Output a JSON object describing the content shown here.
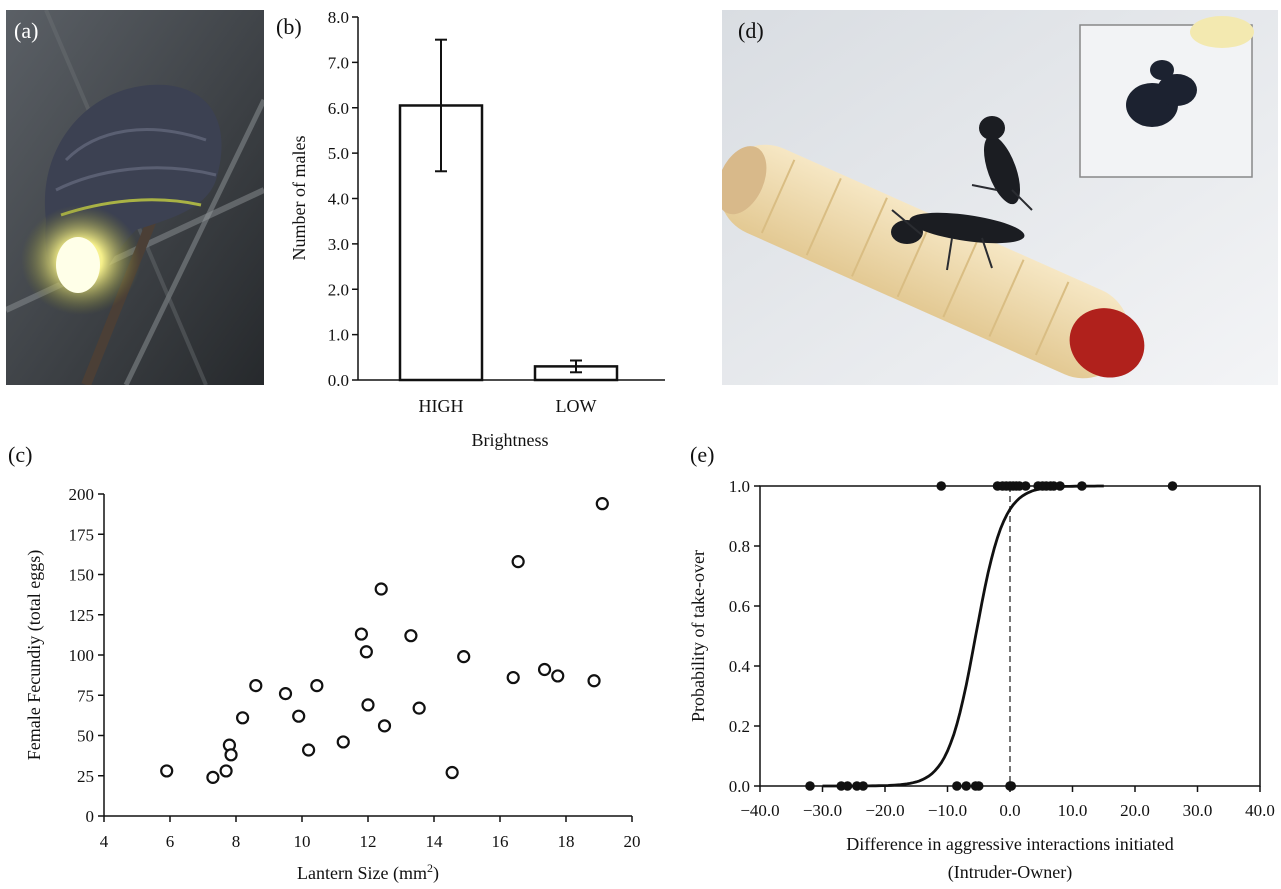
{
  "panels": {
    "a": {
      "label": "(a)"
    },
    "b": {
      "label": "(b)"
    },
    "c": {
      "label": "(c)"
    },
    "d": {
      "label": "(d)"
    },
    "e": {
      "label": "(e)"
    }
  },
  "photos": {
    "a": {
      "subject": "glowing firefly larva photo",
      "colors": {
        "bg": "#3a3f44",
        "glow": "#f6f08a",
        "body": "#3c4152"
      }
    },
    "d": {
      "subject": "wasps on pale larva photo with inset",
      "colors": {
        "bg": "#e9ecef",
        "larva": "#f0ddb0",
        "head": "#b0211c",
        "wasp": "#1b1d22"
      }
    }
  },
  "chart_data": [
    {
      "id": "b",
      "type": "bar",
      "categories": [
        "HIGH",
        "LOW"
      ],
      "values": [
        6.05,
        0.3
      ],
      "error": [
        1.45,
        0.13
      ],
      "xlabel": "Brightness",
      "ylabel": "Number of males",
      "ylim": [
        0,
        8
      ],
      "yticks": [
        "0.0",
        "1.0",
        "2.0",
        "3.0",
        "4.0",
        "5.0",
        "6.0",
        "7.0",
        "8.0"
      ],
      "grid": false
    },
    {
      "id": "c",
      "type": "scatter",
      "xlabel": "Lantern Size (mm",
      "xlabel_sup": "2",
      "xlabel_end": ")",
      "ylabel": "Female Fecundiy (total eggs)",
      "xlim": [
        4,
        20
      ],
      "ylim": [
        0,
        200
      ],
      "xticks": [
        "4",
        "6",
        "8",
        "10",
        "12",
        "14",
        "16",
        "18",
        "20"
      ],
      "yticks": [
        "0",
        "25",
        "50",
        "75",
        "100",
        "125",
        "150",
        "175",
        "200"
      ],
      "marker": "open circle",
      "points": [
        [
          5.9,
          28
        ],
        [
          7.3,
          24
        ],
        [
          7.7,
          28
        ],
        [
          7.8,
          44
        ],
        [
          7.85,
          38
        ],
        [
          8.2,
          61
        ],
        [
          8.6,
          81
        ],
        [
          9.5,
          76
        ],
        [
          9.9,
          62
        ],
        [
          10.2,
          41
        ],
        [
          10.45,
          81
        ],
        [
          11.25,
          46
        ],
        [
          11.8,
          113
        ],
        [
          11.95,
          102
        ],
        [
          12.0,
          69
        ],
        [
          12.4,
          141
        ],
        [
          12.5,
          56
        ],
        [
          13.3,
          112
        ],
        [
          13.55,
          67
        ],
        [
          14.55,
          27
        ],
        [
          14.9,
          99
        ],
        [
          16.4,
          86
        ],
        [
          16.55,
          158
        ],
        [
          17.35,
          91
        ],
        [
          17.75,
          87
        ],
        [
          18.85,
          84
        ],
        [
          19.1,
          194
        ]
      ],
      "grid": false
    },
    {
      "id": "e",
      "type": "line",
      "xlabel": "Difference in aggressive interactions initiated",
      "xlabel2": "(Intruder-Owner)",
      "ylabel": "Probability of take-over",
      "xlim": [
        -40,
        40
      ],
      "ylim": [
        0,
        1
      ],
      "xticks": [
        "−40.0",
        "−30.0",
        "−20.0",
        "−10.0",
        "0.0",
        "10.0",
        "20.0",
        "30.0",
        "40.0"
      ],
      "yticks": [
        "0.0",
        "0.2",
        "0.4",
        "0.6",
        "0.8",
        "1.0"
      ],
      "curve": {
        "type": "logistic",
        "midpoint": -5.5,
        "slope": 0.45
      },
      "points_top": [
        -11,
        -2,
        -1.2,
        -0.6,
        0,
        0.5,
        1,
        1.5,
        2.5,
        4.5,
        5.2,
        5.8,
        6.5,
        7,
        8,
        11.5,
        26
      ],
      "points_bottom": [
        -32,
        -27,
        -26,
        -24.5,
        -23.5,
        -8.5,
        -7,
        -5.5,
        -5,
        0,
        0.2
      ],
      "reference_line_x": 0,
      "grid": false
    }
  ]
}
